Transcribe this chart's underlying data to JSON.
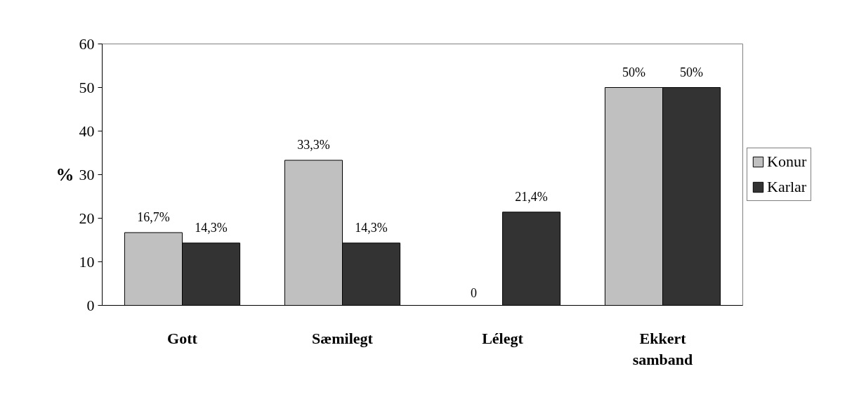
{
  "chart_data": {
    "type": "bar",
    "ylabel": "%",
    "categories": [
      "Gott",
      "Sæmilegt",
      "Lélegt",
      "Ekkert samband"
    ],
    "series": [
      {
        "name": "Konur",
        "color": "#c0c0c0",
        "values": [
          16.7,
          33.3,
          0,
          50
        ],
        "value_labels": [
          "16,7%",
          "33,3%",
          "0",
          "50%"
        ]
      },
      {
        "name": "Karlar",
        "color": "#333333",
        "values": [
          14.3,
          14.3,
          21.4,
          50
        ],
        "value_labels": [
          "14,3%",
          "14,3%",
          "21,4%",
          "50%"
        ]
      }
    ],
    "ylim": [
      0,
      60
    ],
    "yticks": [
      0,
      10,
      20,
      30,
      40,
      50,
      60
    ],
    "grid": false,
    "legend": "right"
  }
}
